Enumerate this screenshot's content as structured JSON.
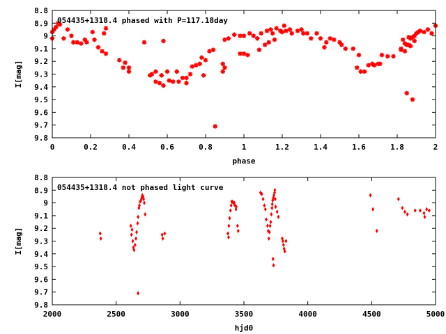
{
  "chart_data": [
    {
      "type": "scatter",
      "title": "054435+1318.4 phased with P=117.18day",
      "xlabel": "phase",
      "ylabel": "I[mag]",
      "xlim": [
        0,
        2
      ],
      "ylim": [
        8.8,
        9.8
      ],
      "y_inverted": true,
      "xticks": [
        "0",
        "0.2",
        "0.4",
        "0.6",
        "0.8",
        "1",
        "1.2",
        "1.4",
        "1.6",
        "1.8",
        "2"
      ],
      "yticks": [
        "8.8",
        "8.9",
        "9",
        "9.1",
        "9.2",
        "9.3",
        "9.4",
        "9.5",
        "9.6",
        "9.7",
        "9.8"
      ],
      "marker": "asterisk",
      "color": "#ff0000",
      "grid": false,
      "legend": "none",
      "points": [
        [
          0.0,
          9.02
        ],
        [
          0.0,
          8.97
        ],
        [
          0.01,
          8.95
        ],
        [
          0.02,
          8.93
        ],
        [
          0.03,
          8.9
        ],
        [
          0.04,
          8.91
        ],
        [
          0.06,
          9.02
        ],
        [
          0.08,
          8.95
        ],
        [
          0.1,
          9.0
        ],
        [
          0.11,
          9.05
        ],
        [
          0.13,
          9.05
        ],
        [
          0.15,
          9.06
        ],
        [
          0.17,
          9.03
        ],
        [
          0.18,
          9.05
        ],
        [
          0.21,
          8.97
        ],
        [
          0.22,
          9.03
        ],
        [
          0.24,
          9.09
        ],
        [
          0.26,
          9.12
        ],
        [
          0.27,
          8.98
        ],
        [
          0.28,
          8.94
        ],
        [
          0.28,
          9.14
        ],
        [
          0.35,
          9.19
        ],
        [
          0.37,
          9.25
        ],
        [
          0.38,
          9.21
        ],
        [
          0.4,
          9.25
        ],
        [
          0.4,
          9.28
        ],
        [
          0.48,
          9.05
        ],
        [
          0.51,
          9.31
        ],
        [
          0.52,
          9.3
        ],
        [
          0.54,
          9.28
        ],
        [
          0.54,
          9.36
        ],
        [
          0.56,
          9.37
        ],
        [
          0.57,
          9.31
        ],
        [
          0.58,
          9.39
        ],
        [
          0.58,
          9.04
        ],
        [
          0.6,
          9.28
        ],
        [
          0.61,
          9.35
        ],
        [
          0.63,
          9.36
        ],
        [
          0.65,
          9.28
        ],
        [
          0.66,
          9.36
        ],
        [
          0.68,
          9.33
        ],
        [
          0.7,
          9.37
        ],
        [
          0.7,
          9.33
        ],
        [
          0.72,
          9.3
        ],
        [
          0.73,
          9.24
        ],
        [
          0.75,
          9.23
        ],
        [
          0.77,
          9.22
        ],
        [
          0.78,
          9.17
        ],
        [
          0.79,
          9.31
        ],
        [
          0.8,
          9.19
        ],
        [
          0.82,
          9.12
        ],
        [
          0.84,
          9.11
        ],
        [
          0.85,
          9.71
        ],
        [
          0.89,
          9.28
        ],
        [
          0.89,
          9.22
        ],
        [
          0.9,
          9.25
        ],
        [
          0.9,
          9.03
        ],
        [
          0.92,
          9.02
        ],
        [
          0.95,
          8.99
        ],
        [
          0.98,
          9.0
        ],
        [
          0.98,
          9.14
        ],
        [
          1.0,
          9.14
        ],
        [
          1.0,
          9.0
        ],
        [
          1.02,
          9.15
        ],
        [
          1.03,
          8.98
        ],
        [
          1.05,
          9.0
        ],
        [
          1.07,
          9.02
        ],
        [
          1.08,
          9.11
        ],
        [
          1.09,
          8.98
        ],
        [
          1.11,
          9.07
        ],
        [
          1.12,
          8.96
        ],
        [
          1.13,
          9.05
        ],
        [
          1.14,
          8.95
        ],
        [
          1.15,
          8.98
        ],
        [
          1.16,
          9.03
        ],
        [
          1.17,
          8.94
        ],
        [
          1.19,
          8.96
        ],
        [
          1.2,
          8.97
        ],
        [
          1.21,
          8.92
        ],
        [
          1.22,
          8.96
        ],
        [
          1.24,
          8.95
        ],
        [
          1.25,
          8.98
        ],
        [
          1.28,
          8.96
        ],
        [
          1.3,
          8.95
        ],
        [
          1.31,
          8.98
        ],
        [
          1.33,
          8.98
        ],
        [
          1.35,
          9.02
        ],
        [
          1.38,
          8.98
        ],
        [
          1.4,
          9.02
        ],
        [
          1.42,
          9.09
        ],
        [
          1.43,
          9.05
        ],
        [
          1.45,
          9.02
        ],
        [
          1.47,
          9.03
        ],
        [
          1.5,
          9.05
        ],
        [
          1.51,
          9.07
        ],
        [
          1.53,
          9.1
        ],
        [
          1.57,
          9.1
        ],
        [
          1.59,
          9.25
        ],
        [
          1.6,
          9.15
        ],
        [
          1.61,
          9.28
        ],
        [
          1.63,
          9.28
        ],
        [
          1.65,
          9.23
        ],
        [
          1.67,
          9.22
        ],
        [
          1.68,
          9.23
        ],
        [
          1.7,
          9.22
        ],
        [
          1.71,
          9.22
        ],
        [
          1.72,
          9.15
        ],
        [
          1.75,
          9.16
        ],
        [
          1.78,
          9.16
        ],
        [
          1.82,
          9.11
        ],
        [
          1.82,
          9.1
        ],
        [
          1.83,
          9.03
        ],
        [
          1.84,
          9.12
        ],
        [
          1.84,
          9.06
        ],
        [
          1.85,
          9.45
        ],
        [
          1.85,
          9.07
        ],
        [
          1.86,
          9.01
        ],
        [
          1.86,
          9.07
        ],
        [
          1.87,
          9.02
        ],
        [
          1.87,
          9.08
        ],
        [
          1.88,
          9.5
        ],
        [
          1.88,
          9.01
        ],
        [
          1.89,
          9.0
        ],
        [
          1.89,
          9.04
        ],
        [
          1.9,
          8.98
        ],
        [
          1.91,
          8.97
        ],
        [
          1.92,
          8.96
        ],
        [
          1.94,
          8.97
        ],
        [
          1.96,
          8.95
        ],
        [
          1.98,
          8.98
        ],
        [
          2.0,
          8.92
        ]
      ]
    },
    {
      "type": "scatter",
      "title": "054435+1318.4 not phased light curve",
      "xlabel": "hjd0",
      "ylabel": "I[mag]",
      "xlim": [
        2000,
        5000
      ],
      "ylim": [
        8.8,
        9.8
      ],
      "y_inverted": true,
      "xticks": [
        "2000",
        "2500",
        "3000",
        "3500",
        "4000",
        "4500",
        "5000"
      ],
      "yticks": [
        "8.8",
        "8.9",
        "9",
        "9.1",
        "9.2",
        "9.3",
        "9.4",
        "9.5",
        "9.6",
        "9.7",
        "9.8"
      ],
      "marker": "diamond",
      "color": "#ff0000",
      "grid": false,
      "legend": "none",
      "points": [
        [
          2375,
          9.24
        ],
        [
          2380,
          9.28
        ],
        [
          2615,
          9.18
        ],
        [
          2620,
          9.25
        ],
        [
          2625,
          9.21
        ],
        [
          2630,
          9.3
        ],
        [
          2635,
          9.35
        ],
        [
          2640,
          9.37
        ],
        [
          2648,
          9.33
        ],
        [
          2655,
          9.28
        ],
        [
          2660,
          9.23
        ],
        [
          2668,
          9.16
        ],
        [
          2672,
          9.11
        ],
        [
          2678,
          9.04
        ],
        [
          2682,
          9.02
        ],
        [
          2688,
          8.99
        ],
        [
          2694,
          8.98
        ],
        [
          2700,
          8.96
        ],
        [
          2705,
          8.94
        ],
        [
          2710,
          8.95
        ],
        [
          2715,
          8.97
        ],
        [
          2720,
          9.0
        ],
        [
          2727,
          9.09
        ],
        [
          2672,
          9.71
        ],
        [
          2860,
          9.25
        ],
        [
          2865,
          9.28
        ],
        [
          2880,
          9.24
        ],
        [
          3375,
          9.24
        ],
        [
          3380,
          9.27
        ],
        [
          3382,
          9.18
        ],
        [
          3388,
          9.12
        ],
        [
          3395,
          9.06
        ],
        [
          3400,
          9.02
        ],
        [
          3405,
          8.99
        ],
        [
          3410,
          8.99
        ],
        [
          3418,
          9.0
        ],
        [
          3425,
          9.0
        ],
        [
          3430,
          9.02
        ],
        [
          3438,
          9.05
        ],
        [
          3440,
          9.03
        ],
        [
          3450,
          9.18
        ],
        [
          3455,
          9.22
        ],
        [
          3630,
          8.92
        ],
        [
          3640,
          8.93
        ],
        [
          3650,
          8.97
        ],
        [
          3660,
          9.02
        ],
        [
          3668,
          9.05
        ],
        [
          3675,
          9.13
        ],
        [
          3685,
          9.18
        ],
        [
          3690,
          9.22
        ],
        [
          3695,
          9.28
        ],
        [
          3700,
          9.23
        ],
        [
          3705,
          9.18
        ],
        [
          3710,
          9.15
        ],
        [
          3715,
          9.09
        ],
        [
          3720,
          9.04
        ],
        [
          3722,
          9.01
        ],
        [
          3725,
          8.98
        ],
        [
          3728,
          9.44
        ],
        [
          3732,
          9.49
        ],
        [
          3730,
          8.96
        ],
        [
          3735,
          8.94
        ],
        [
          3740,
          8.92
        ],
        [
          3742,
          8.9
        ],
        [
          3745,
          8.97
        ],
        [
          3748,
          9.03
        ],
        [
          3760,
          9.07
        ],
        [
          3770,
          9.11
        ],
        [
          3800,
          9.28
        ],
        [
          3805,
          9.3
        ],
        [
          3810,
          9.33
        ],
        [
          3815,
          9.36
        ],
        [
          3820,
          9.38
        ],
        [
          3830,
          9.3
        ],
        [
          4490,
          8.94
        ],
        [
          4510,
          9.05
        ],
        [
          4540,
          9.22
        ],
        [
          4710,
          8.97
        ],
        [
          4740,
          9.04
        ],
        [
          4760,
          9.07
        ],
        [
          4780,
          9.09
        ],
        [
          4840,
          9.06
        ],
        [
          4880,
          9.06
        ],
        [
          4910,
          9.08
        ],
        [
          4915,
          9.11
        ],
        [
          4930,
          9.05
        ],
        [
          4950,
          9.06
        ]
      ]
    }
  ]
}
